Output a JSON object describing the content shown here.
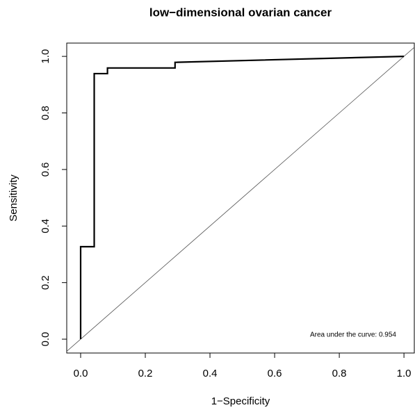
{
  "chart_data": {
    "type": "line",
    "title": "low−dimensional ovarian cancer",
    "x_label": "1−Specificity",
    "y_label": "Sensitivity",
    "x": [
      0,
      0,
      0.042,
      0.042,
      0.083,
      0.083,
      0.292,
      0.292,
      1
    ],
    "values": [
      0,
      0.327,
      0.327,
      0.939,
      0.939,
      0.959,
      0.959,
      0.979,
      1
    ],
    "color": "#000000",
    "xlim": [
      -0.043,
      1.032
    ],
    "ylim": [
      -0.049,
      1.047
    ],
    "xticks": [
      {
        "value": 0,
        "label": "0.0"
      },
      0.2,
      0.4,
      0.6,
      0.8,
      {
        "value": 1,
        "label": "1.0"
      }
    ],
    "yticks": [
      {
        "value": 0,
        "label": "0.0"
      },
      0.2,
      0.4,
      0.6,
      0.8,
      {
        "value": 1,
        "label": "1.0"
      }
    ],
    "annotation": "Area under the curve: 0.954"
  }
}
